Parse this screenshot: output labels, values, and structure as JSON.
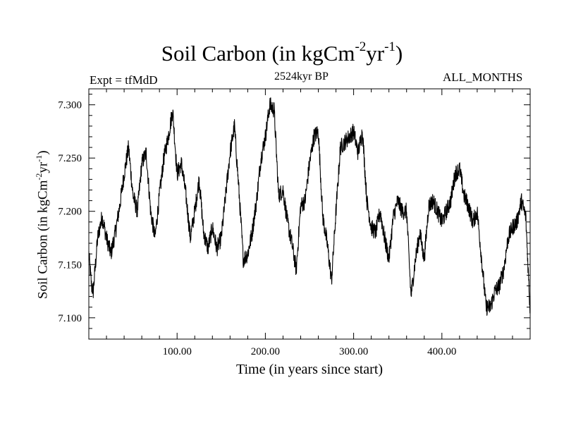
{
  "title": {
    "main": "Soil Carbon (in kgCm",
    "sup1": "-2",
    "mid": "yr",
    "sup2": "-1",
    "end": ")"
  },
  "subtitles": {
    "left": "Expt = tfMdD",
    "center": "2524kyr BP",
    "right": "ALL_MONTHS"
  },
  "axis_labels": {
    "x": "Time (in years since start)",
    "y_main": "Soil Carbon (in kgCm",
    "y_sup1": "-2",
    "y_mid": "yr",
    "y_sup2": "-1",
    "y_end": ")"
  },
  "chart_data": {
    "type": "line",
    "title": "Soil Carbon (in kgCm-2yr-1)",
    "xlabel": "Time (in years since start)",
    "ylabel": "Soil Carbon (in kgCm-2yr-1)",
    "xlim": [
      0,
      500
    ],
    "ylim": [
      7.08,
      7.315
    ],
    "xticks": [
      100,
      200,
      300,
      400
    ],
    "xtick_labels": [
      "100.00",
      "200.00",
      "300.00",
      "400.00"
    ],
    "yticks": [
      7.1,
      7.15,
      7.2,
      7.25,
      7.3
    ],
    "ytick_labels": [
      "7.100",
      "7.150",
      "7.200",
      "7.250",
      "7.300"
    ],
    "noise_amplitude": 0.008,
    "series": [
      {
        "name": "Soil Carbon",
        "color": "#000000",
        "anchors_x": [
          0,
          3,
          5,
          10,
          15,
          20,
          25,
          30,
          35,
          40,
          45,
          50,
          55,
          60,
          65,
          70,
          75,
          80,
          85,
          90,
          95,
          100,
          105,
          110,
          115,
          120,
          125,
          130,
          135,
          140,
          145,
          150,
          155,
          160,
          165,
          170,
          175,
          180,
          185,
          190,
          195,
          200,
          205,
          210,
          215,
          220,
          225,
          230,
          235,
          240,
          245,
          250,
          255,
          260,
          265,
          270,
          275,
          280,
          285,
          290,
          295,
          300,
          305,
          310,
          315,
          320,
          325,
          330,
          335,
          340,
          345,
          350,
          355,
          360,
          365,
          370,
          375,
          380,
          385,
          390,
          395,
          400,
          405,
          410,
          415,
          420,
          425,
          430,
          435,
          440,
          445,
          450,
          455,
          460,
          465,
          470,
          475,
          480,
          485,
          490,
          495,
          500
        ],
        "anchors_y": [
          7.16,
          7.13,
          7.125,
          7.175,
          7.195,
          7.175,
          7.16,
          7.18,
          7.205,
          7.235,
          7.26,
          7.215,
          7.2,
          7.245,
          7.255,
          7.2,
          7.175,
          7.215,
          7.25,
          7.27,
          7.295,
          7.235,
          7.245,
          7.215,
          7.175,
          7.2,
          7.23,
          7.18,
          7.165,
          7.185,
          7.165,
          7.175,
          7.215,
          7.255,
          7.28,
          7.22,
          7.155,
          7.16,
          7.18,
          7.21,
          7.25,
          7.27,
          7.3,
          7.295,
          7.215,
          7.22,
          7.19,
          7.17,
          7.145,
          7.205,
          7.21,
          7.245,
          7.27,
          7.275,
          7.195,
          7.17,
          7.135,
          7.2,
          7.26,
          7.265,
          7.27,
          7.275,
          7.255,
          7.275,
          7.21,
          7.185,
          7.18,
          7.2,
          7.175,
          7.155,
          7.195,
          7.21,
          7.2,
          7.2,
          7.12,
          7.155,
          7.18,
          7.155,
          7.205,
          7.21,
          7.2,
          7.19,
          7.2,
          7.21,
          7.235,
          7.24,
          7.215,
          7.205,
          7.19,
          7.2,
          7.155,
          7.11,
          7.11,
          7.125,
          7.13,
          7.145,
          7.175,
          7.185,
          7.19,
          7.21,
          7.195,
          7.105
        ]
      }
    ]
  }
}
